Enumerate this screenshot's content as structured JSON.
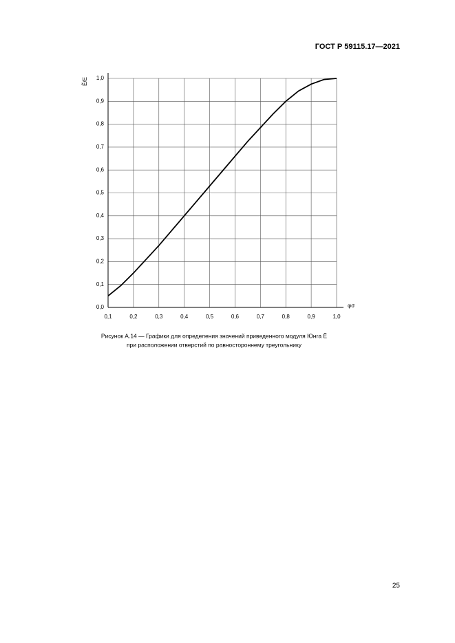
{
  "header": {
    "code": "ГОСТ Р 59115.17—2021"
  },
  "chart_data": {
    "type": "line",
    "x_label": "φσ",
    "y_label": "Ẽ/E",
    "x": [
      0.1,
      0.15,
      0.2,
      0.25,
      0.3,
      0.35,
      0.4,
      0.45,
      0.5,
      0.55,
      0.6,
      0.65,
      0.7,
      0.75,
      0.8,
      0.85,
      0.9,
      0.95,
      1.0
    ],
    "series": [
      {
        "name": "Ẽ/E",
        "color": "#000000",
        "values": [
          0.05,
          0.095,
          0.15,
          0.21,
          0.27,
          0.335,
          0.4,
          0.465,
          0.53,
          0.595,
          0.66,
          0.725,
          0.785,
          0.845,
          0.9,
          0.945,
          0.975,
          0.995,
          1.0
        ]
      }
    ],
    "xlim": [
      0.1,
      1.0
    ],
    "ylim": [
      0.0,
      1.0
    ],
    "xticks": [
      {
        "value": 0.1,
        "label": "0,1"
      },
      {
        "value": 0.2,
        "label": "0,2"
      },
      {
        "value": 0.3,
        "label": "0,3"
      },
      {
        "value": 0.4,
        "label": "0,4"
      },
      {
        "value": 0.5,
        "label": "0,5"
      },
      {
        "value": 0.6,
        "label": "0,6"
      },
      {
        "value": 0.7,
        "label": "0,7"
      },
      {
        "value": 0.8,
        "label": "0,8"
      },
      {
        "value": 0.9,
        "label": "0,9"
      },
      {
        "value": 1.0,
        "label": "1,0"
      }
    ],
    "yticks": [
      {
        "value": 0.0,
        "label": "0,0"
      },
      {
        "value": 0.1,
        "label": "0,1"
      },
      {
        "value": 0.2,
        "label": "0,2"
      },
      {
        "value": 0.3,
        "label": "0,3"
      },
      {
        "value": 0.4,
        "label": "0,4"
      },
      {
        "value": 0.5,
        "label": "0,5"
      },
      {
        "value": 0.6,
        "label": "0,6"
      },
      {
        "value": 0.7,
        "label": "0,7"
      },
      {
        "value": 0.8,
        "label": "0,8"
      },
      {
        "value": 0.9,
        "label": "0,9"
      },
      {
        "value": 1.0,
        "label": "1,0"
      }
    ],
    "grid": true
  },
  "caption": {
    "line1": "Рисунок А.14 — Графики для определения значений приведенного модуля Юнга Ẽ",
    "line2": "при расположении отверстий по равностороннему треугольнику"
  },
  "page_number": "25"
}
